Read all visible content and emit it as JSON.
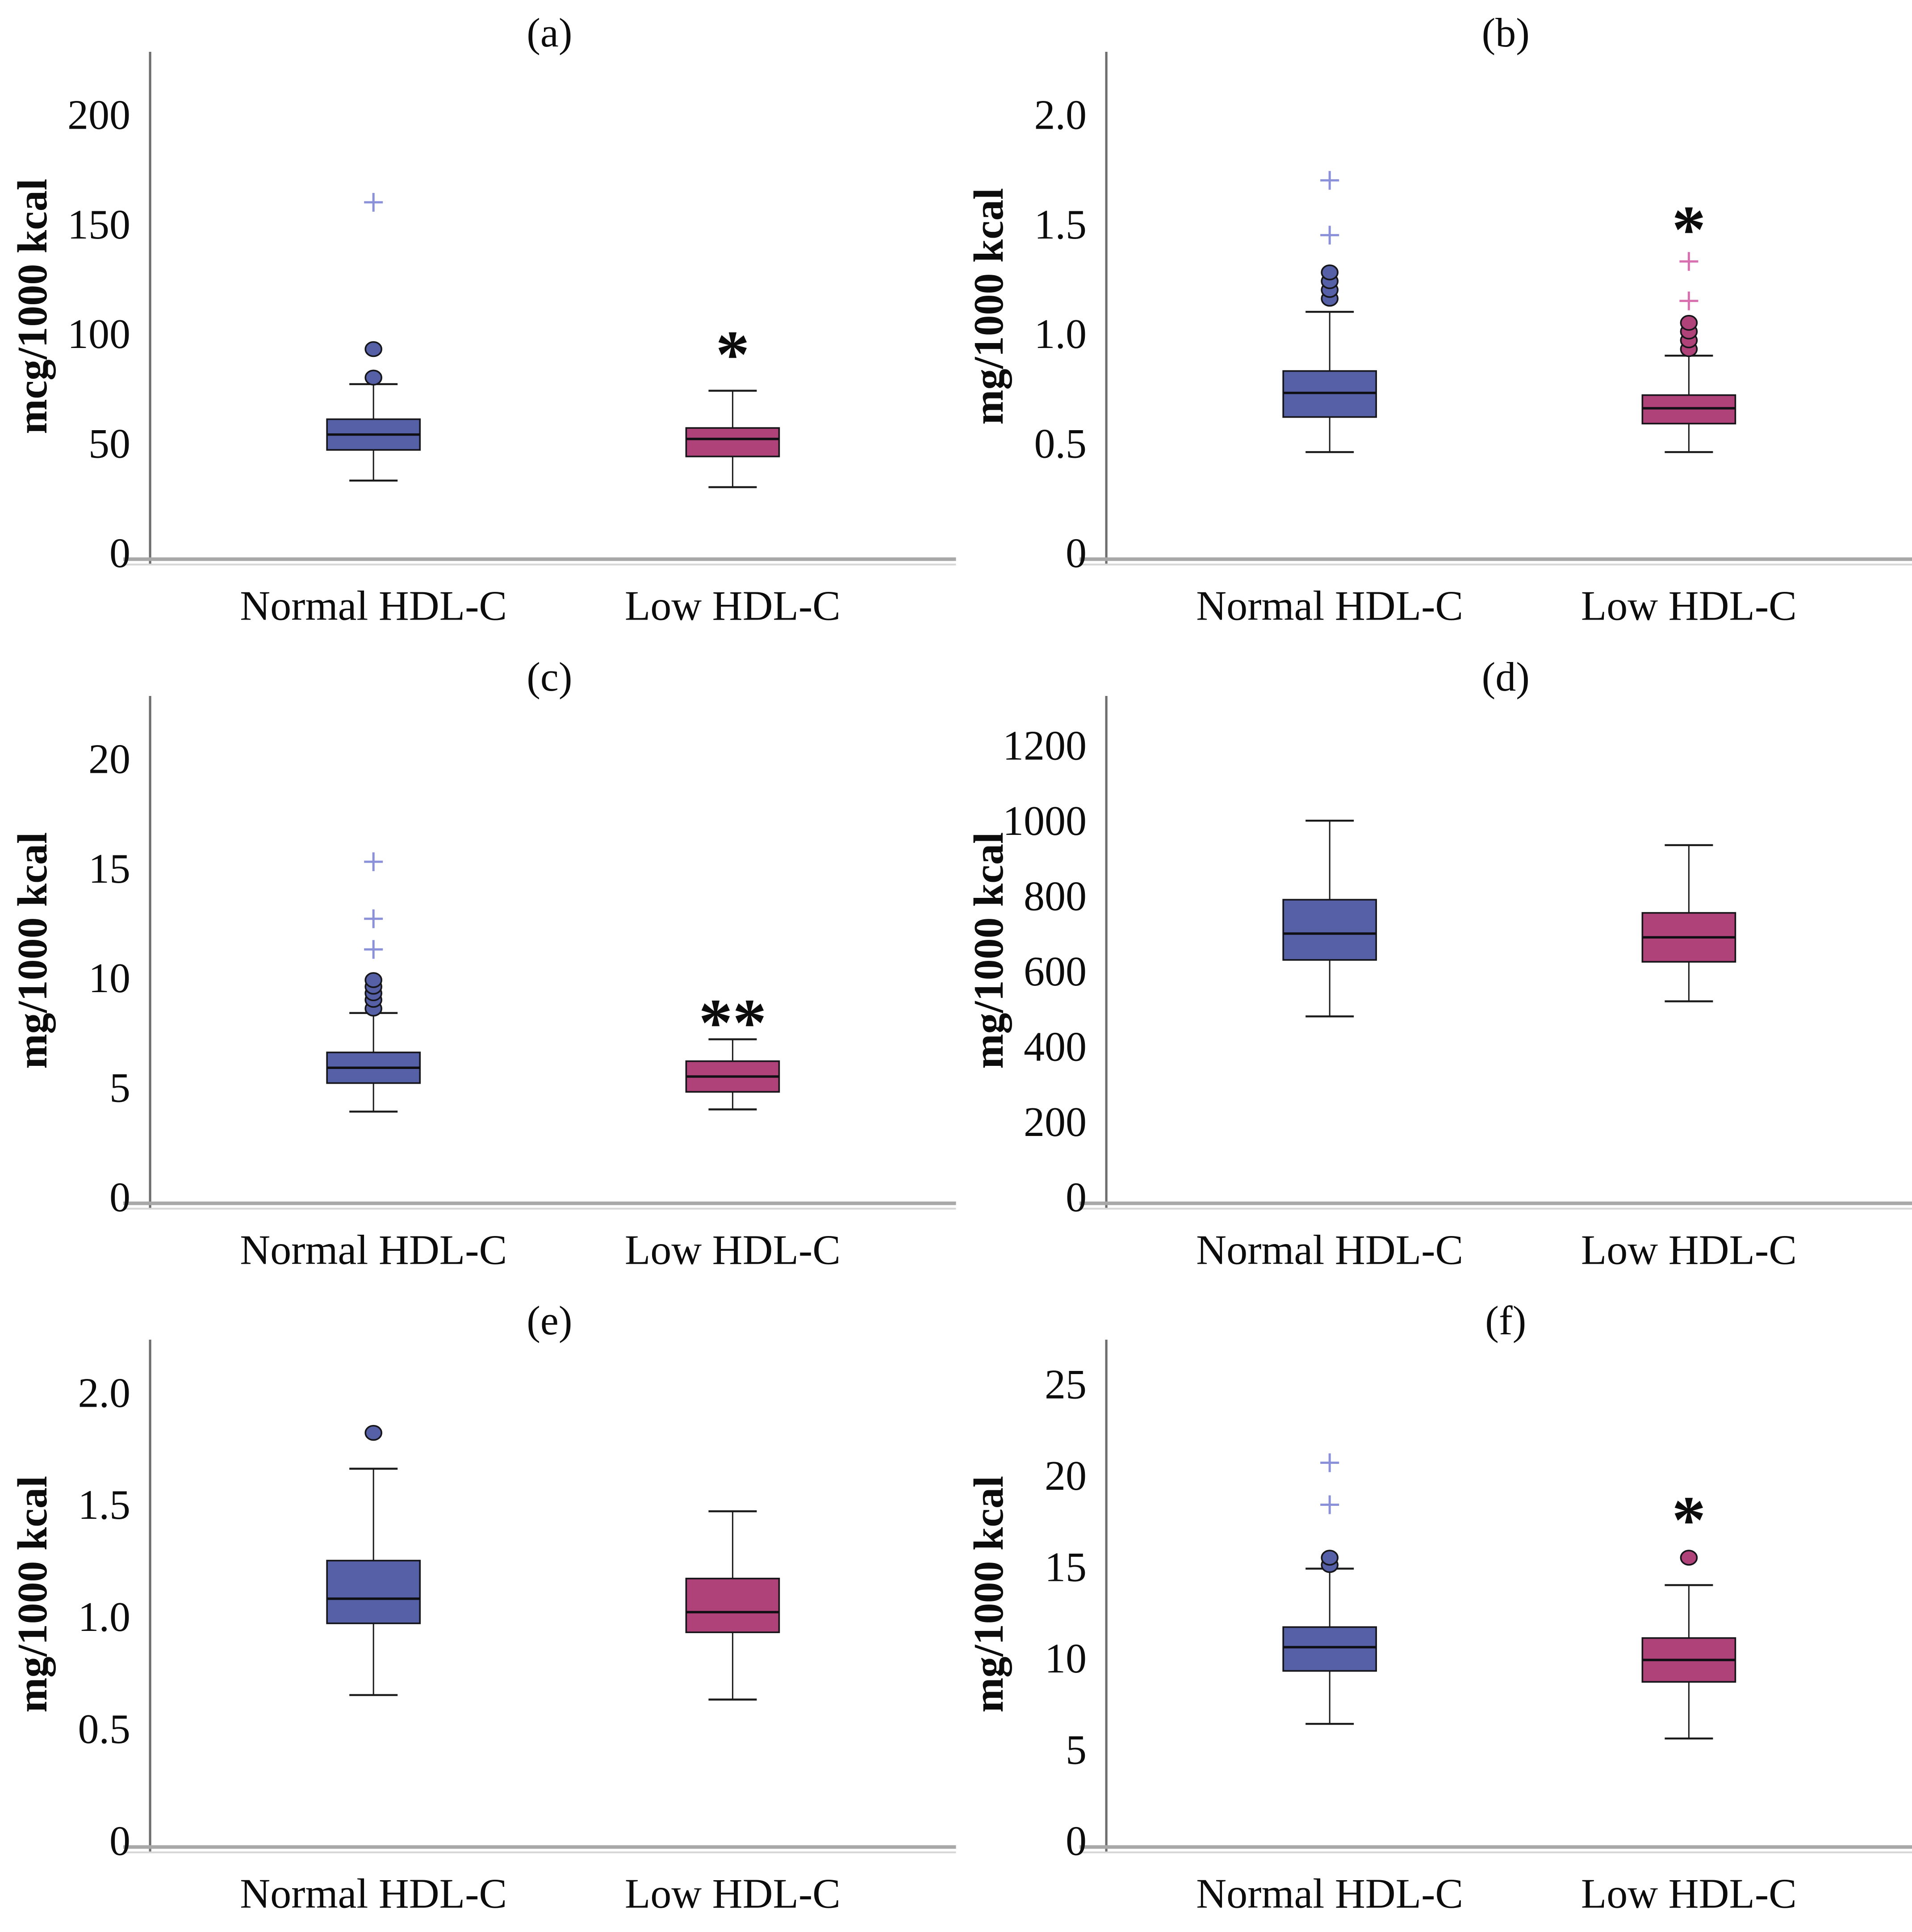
{
  "figure_title": "",
  "colors": {
    "normal_box": "#5560a6",
    "low_box": "#ae4279",
    "normal_plus": "#8b91d9",
    "low_plus": "#d86fae",
    "axis_line": "#6e6e6e",
    "baseline": "#a8a8a8",
    "marker_edge": "#16161a"
  },
  "chart_data": [
    {
      "id": "a",
      "type": "box",
      "panel": "(a)",
      "ylabel": "mcg/1000 kcal",
      "yticks": [
        "0",
        "50",
        "100",
        "150",
        "200"
      ],
      "ylim": [
        0,
        225
      ],
      "grid": false,
      "legend": "none",
      "categories": [
        "Normal HDL-C",
        "Low HDL-C"
      ],
      "series": [
        {
          "name": "Normal HDL-C",
          "slug": "normal-hdl-c",
          "box_color": "#5560a6",
          "plus_color": "#8b91d9",
          "whisker_low": 33,
          "q1": 47,
          "median": 54,
          "q3": 61,
          "whisker_high": 77,
          "outliers_circle": [
            80,
            93
          ],
          "outliers_plus": [
            160
          ],
          "annotation": "",
          "annotation_y": null
        },
        {
          "name": "Low HDL-C",
          "slug": "low-hdl-c",
          "box_color": "#ae4279",
          "plus_color": "#d86fae",
          "whisker_low": 30,
          "q1": 44,
          "median": 52,
          "q3": 57,
          "whisker_high": 74,
          "outliers_circle": [],
          "outliers_plus": [],
          "annotation": "*",
          "annotation_y": 90
        }
      ]
    },
    {
      "id": "b",
      "type": "box",
      "panel": "(b)",
      "ylabel": "mg/1000 kcal",
      "yticks": [
        "0",
        "0.5",
        "1.0",
        "1.5",
        "2.0"
      ],
      "ylim": [
        0,
        2.25
      ],
      "grid": false,
      "legend": "none",
      "categories": [
        "Normal HDL-C",
        "Low HDL-C"
      ],
      "series": [
        {
          "name": "Normal HDL-C",
          "slug": "normal-hdl-c",
          "box_color": "#5560a6",
          "plus_color": "#8b91d9",
          "whisker_low": 0.46,
          "q1": 0.62,
          "median": 0.73,
          "q3": 0.83,
          "whisker_high": 1.1,
          "outliers_circle": [
            1.16,
            1.2,
            1.24,
            1.28
          ],
          "outliers_plus": [
            1.45,
            1.7
          ],
          "annotation": "",
          "annotation_y": null
        },
        {
          "name": "Low HDL-C",
          "slug": "low-hdl-c",
          "box_color": "#ae4279",
          "plus_color": "#d86fae",
          "whisker_low": 0.46,
          "q1": 0.59,
          "median": 0.66,
          "q3": 0.72,
          "whisker_high": 0.9,
          "outliers_circle": [
            0.93,
            0.97,
            1.01,
            1.05
          ],
          "outliers_plus": [
            1.15,
            1.33
          ],
          "annotation": "*",
          "annotation_y": 1.47
        }
      ]
    },
    {
      "id": "c",
      "type": "box",
      "panel": "(c)",
      "ylabel": "mg/1000 kcal",
      "yticks": [
        "0",
        "5",
        "10",
        "15",
        "20"
      ],
      "ylim": [
        0,
        22.5
      ],
      "grid": false,
      "legend": "none",
      "categories": [
        "Normal HDL-C",
        "Low HDL-C"
      ],
      "series": [
        {
          "name": "Normal HDL-C",
          "slug": "normal-hdl-c",
          "box_color": "#5560a6",
          "plus_color": "#8b91d9",
          "whisker_low": 3.9,
          "q1": 5.2,
          "median": 5.9,
          "q3": 6.6,
          "whisker_high": 8.4,
          "outliers_circle": [
            8.6,
            9.0,
            9.3,
            9.6,
            9.9
          ],
          "outliers_plus": [
            11.3,
            12.7,
            15.3
          ],
          "annotation": "",
          "annotation_y": null
        },
        {
          "name": "Low HDL-C",
          "slug": "low-hdl-c",
          "box_color": "#ae4279",
          "plus_color": "#d86fae",
          "whisker_low": 4.0,
          "q1": 4.8,
          "median": 5.5,
          "q3": 6.2,
          "whisker_high": 7.2,
          "outliers_circle": [],
          "outliers_plus": [],
          "annotation": "**",
          "annotation_y": 7.9
        }
      ]
    },
    {
      "id": "d",
      "type": "box",
      "panel": "(d)",
      "ylabel": "mg/1000 kcal",
      "yticks": [
        "0",
        "200",
        "400",
        "600",
        "800",
        "1000",
        "1200"
      ],
      "ylim": [
        0,
        1310
      ],
      "grid": false,
      "legend": "none",
      "categories": [
        "Normal HDL-C",
        "Low HDL-C"
      ],
      "series": [
        {
          "name": "Normal HDL-C",
          "slug": "normal-hdl-c",
          "box_color": "#5560a6",
          "plus_color": "#8b91d9",
          "whisker_low": 480,
          "q1": 630,
          "median": 700,
          "q3": 790,
          "whisker_high": 1000,
          "outliers_circle": [],
          "outliers_plus": [],
          "annotation": "",
          "annotation_y": null
        },
        {
          "name": "Low HDL-C",
          "slug": "low-hdl-c",
          "box_color": "#ae4279",
          "plus_color": "#d86fae",
          "whisker_low": 520,
          "q1": 625,
          "median": 690,
          "q3": 755,
          "whisker_high": 935,
          "outliers_circle": [],
          "outliers_plus": [],
          "annotation": "",
          "annotation_y": null
        }
      ]
    },
    {
      "id": "e",
      "type": "box",
      "panel": "(e)",
      "ylabel": "mg/1000 kcal",
      "yticks": [
        "0",
        "0.5",
        "1.0",
        "1.5",
        "2.0"
      ],
      "ylim": [
        0,
        2.2
      ],
      "grid": false,
      "legend": "none",
      "categories": [
        "Normal HDL-C",
        "Low HDL-C"
      ],
      "series": [
        {
          "name": "Normal HDL-C",
          "slug": "normal-hdl-c",
          "box_color": "#5560a6",
          "plus_color": "#8b91d9",
          "whisker_low": 0.65,
          "q1": 0.97,
          "median": 1.08,
          "q3": 1.25,
          "whisker_high": 1.66,
          "outliers_circle": [
            1.82
          ],
          "outliers_plus": [],
          "annotation": "",
          "annotation_y": null
        },
        {
          "name": "Low HDL-C",
          "slug": "low-hdl-c",
          "box_color": "#ae4279",
          "plus_color": "#d86fae",
          "whisker_low": 0.63,
          "q1": 0.93,
          "median": 1.02,
          "q3": 1.17,
          "whisker_high": 1.47,
          "outliers_circle": [],
          "outliers_plus": [],
          "annotation": "",
          "annotation_y": null
        }
      ]
    },
    {
      "id": "f",
      "type": "box",
      "panel": "(f)",
      "ylabel": "mg/1000 kcal",
      "yticks": [
        "0",
        "5",
        "10",
        "15",
        "20",
        "25"
      ],
      "ylim": [
        0,
        27
      ],
      "grid": false,
      "legend": "none",
      "categories": [
        "Normal HDL-C",
        "Low HDL-C"
      ],
      "series": [
        {
          "name": "Normal HDL-C",
          "slug": "normal-hdl-c",
          "box_color": "#5560a6",
          "plus_color": "#8b91d9",
          "whisker_low": 6.4,
          "q1": 9.3,
          "median": 10.6,
          "q3": 11.7,
          "whisker_high": 14.9,
          "outliers_circle": [
            15.1,
            15.5
          ],
          "outliers_plus": [
            18.4,
            20.7
          ],
          "annotation": "",
          "annotation_y": null
        },
        {
          "name": "Low HDL-C",
          "slug": "low-hdl-c",
          "box_color": "#ae4279",
          "plus_color": "#d86fae",
          "whisker_low": 5.6,
          "q1": 8.7,
          "median": 9.9,
          "q3": 11.1,
          "whisker_high": 14.0,
          "outliers_circle": [
            15.5
          ],
          "outliers_plus": [],
          "annotation": "*",
          "annotation_y": 17.5
        }
      ]
    }
  ]
}
